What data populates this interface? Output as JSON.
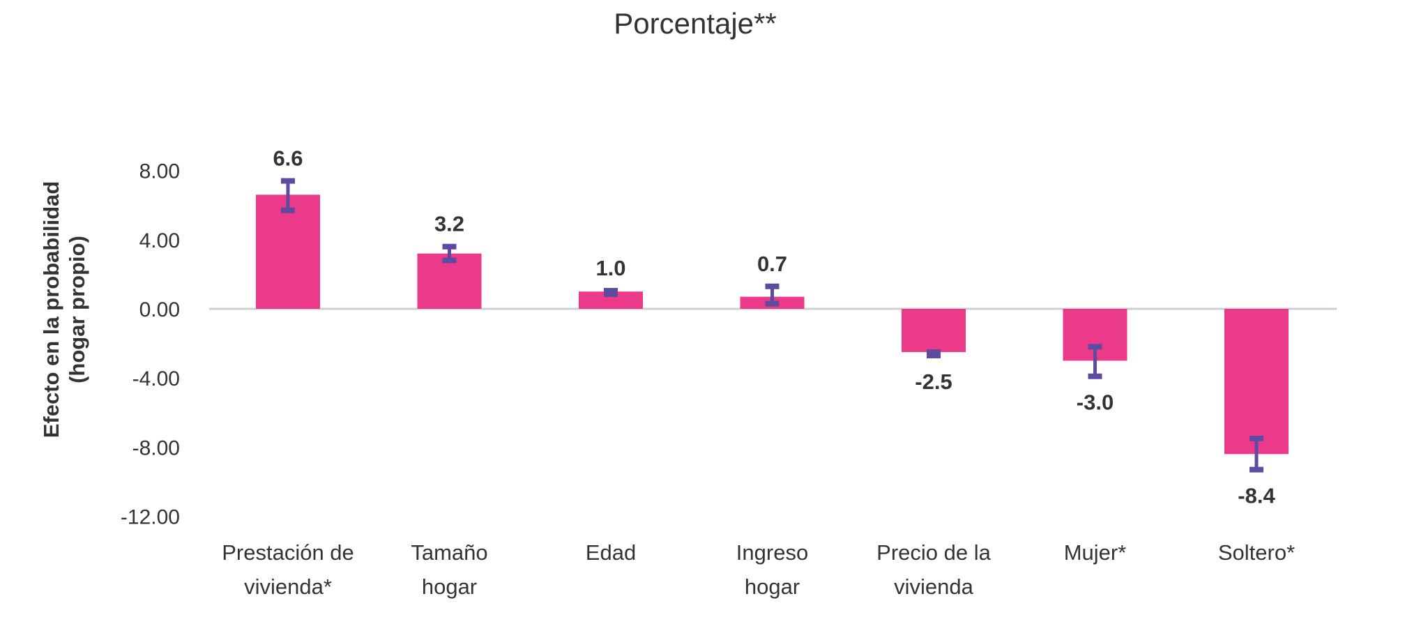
{
  "chart_data": {
    "type": "bar",
    "title": "Porcentaje**",
    "ylabel": [
      "Efecto en la probabilidad",
      "(hogar propio)"
    ],
    "xlabel": "",
    "ylim": [
      -12,
      8
    ],
    "yticks": [
      8,
      4,
      0,
      -4,
      -8,
      -12
    ],
    "ytick_labels": [
      "8.00",
      "4.00",
      "0.00",
      "-4.00",
      "-8.00",
      "-12.00"
    ],
    "categories": [
      [
        "Prestación de",
        "vivienda*"
      ],
      [
        "Tamaño",
        "hogar"
      ],
      [
        "Edad"
      ],
      [
        "Ingreso",
        "hogar"
      ],
      [
        "Precio de la",
        "vivienda"
      ],
      [
        "Mujer*"
      ],
      [
        "Soltero*"
      ]
    ],
    "values": [
      6.6,
      3.2,
      1.0,
      0.7,
      -2.5,
      -3.0,
      -8.4
    ],
    "value_labels": [
      "6.6",
      "3.2",
      "1.0",
      "0.7",
      "-2.5",
      "-3.0",
      "-8.4"
    ],
    "error_low": [
      5.7,
      2.8,
      0.85,
      0.3,
      -2.5,
      -2.2,
      -7.5
    ],
    "error_high": [
      7.4,
      3.6,
      1.05,
      1.3,
      -2.7,
      -3.9,
      -9.3
    ],
    "grid": false,
    "legend": "none",
    "colors": {
      "bar": "#EC3A8A",
      "error": "#5E4BA0",
      "axis": "#C9D1D5",
      "text": "#333333"
    }
  }
}
